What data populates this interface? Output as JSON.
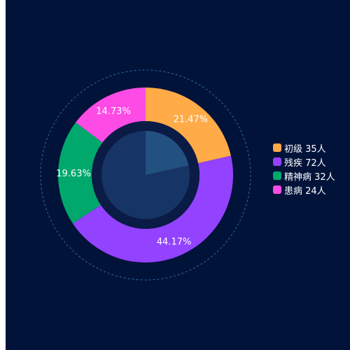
{
  "chart_data": {
    "type": "pie",
    "variant": "donut",
    "grid": false,
    "legend_position": "right",
    "series": [
      {
        "name": "初级",
        "value": 35,
        "unit": "人",
        "percent_label": "21.47%",
        "color": "#ffab47"
      },
      {
        "name": "残疾",
        "value": 72,
        "unit": "人",
        "percent_label": "44.17%",
        "color": "#9342ff"
      },
      {
        "name": "精神病",
        "value": 32,
        "unit": "人",
        "percent_label": "19.63%",
        "color": "#00a86b"
      },
      {
        "name": "患病",
        "value": 24,
        "unit": "人",
        "percent_label": "14.73%",
        "color": "#ff4be6"
      }
    ],
    "legend": [
      {
        "text": "初级 35人"
      },
      {
        "text": "残疾 72人"
      },
      {
        "text": "精神病 32人"
      },
      {
        "text": "患病 24人"
      }
    ]
  },
  "colors": {
    "background": "#02133a",
    "inner_ring": "#0a1b45",
    "core_disc": "#173466",
    "core_highlight": "#22507f",
    "dashed_ring": "#2b6aa0",
    "label_text": "#ffffff"
  }
}
